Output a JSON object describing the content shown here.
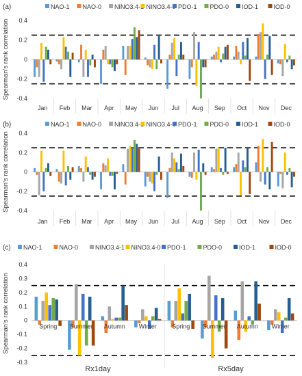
{
  "chart_data": [
    {
      "panel_label": "(a)",
      "type": "bar",
      "ylabel": "Spearman's rank correlation",
      "ylim": [
        -0.4,
        0.4
      ],
      "yticks": [
        -0.4,
        -0.2,
        0,
        0.2,
        0.4
      ],
      "threshold": 0.25,
      "legend_position": "top",
      "categories": [
        "Jan",
        "Feb",
        "Mar",
        "Apr",
        "May",
        "Jun",
        "Jul",
        "Aug",
        "Sep",
        "Oct",
        "Nov",
        "Dec"
      ],
      "series": [
        {
          "name": "NAO-1",
          "color": "#5b9bd5",
          "values": [
            -0.18,
            -0.02,
            -0.03,
            -0.25,
            0.14,
            0.02,
            -0.3,
            -0.2,
            0.03,
            0.03,
            0.03,
            -0.04
          ]
        },
        {
          "name": "NAO-0",
          "color": "#ed7d31",
          "values": [
            -0.08,
            -0.05,
            0.15,
            0.1,
            -0.16,
            -0.06,
            0.05,
            -0.08,
            0.05,
            0.14,
            0.26,
            -0.05
          ]
        },
        {
          "name": "NINO3.4-1",
          "color": "#a5a5a5",
          "values": [
            -0.18,
            -0.1,
            -0.18,
            0.14,
            0.14,
            -0.08,
            0.17,
            0.28,
            0.08,
            0.08,
            0.28,
            -0.17
          ]
        },
        {
          "name": "NINO3.4-0",
          "color": "#ffc000",
          "values": [
            0.17,
            0.23,
            0.1,
            -0.05,
            0.14,
            -0.1,
            0.22,
            -0.27,
            0.13,
            -0.05,
            0.37,
            0.16
          ]
        },
        {
          "name": "PDO-1",
          "color": "#4472c4",
          "values": [
            -0.23,
            0.13,
            -0.18,
            -0.05,
            0.21,
            0.15,
            -0.17,
            0.18,
            -0.03,
            0.18,
            -0.2,
            -0.03
          ]
        },
        {
          "name": "PDO-0",
          "color": "#70ad47",
          "values": [
            0.13,
            0.08,
            -0.06,
            -0.08,
            0.33,
            -0.1,
            0.05,
            -0.4,
            0.06,
            0.04,
            0.05,
            0.04
          ]
        },
        {
          "name": "IOD-1",
          "color": "#255e91",
          "values": [
            0.1,
            -0.18,
            0.05,
            -0.12,
            0.23,
            0.24,
            0.18,
            -0.08,
            0.13,
            0.22,
            0.24,
            -0.1
          ]
        },
        {
          "name": "IOD-0",
          "color": "#9e480e",
          "values": [
            -0.05,
            0.07,
            -0.08,
            -0.05,
            0.3,
            -0.04,
            0.05,
            -0.08,
            0.15,
            -0.22,
            -0.16,
            -0.06
          ]
        }
      ]
    },
    {
      "panel_label": "(b)",
      "type": "bar",
      "ylabel": "Spearman's rank correlation",
      "ylim": [
        -0.4,
        0.4
      ],
      "yticks": [
        -0.4,
        -0.2,
        0,
        0.2,
        0.4
      ],
      "threshold": 0.25,
      "legend_position": "top",
      "categories": [
        "Jan",
        "Feb",
        "Mar",
        "Apr",
        "May",
        "Jun",
        "Jul",
        "Aug",
        "Sep",
        "Oct",
        "Nov",
        "Dec"
      ],
      "series": [
        {
          "name": "NAO-1",
          "color": "#5b9bd5",
          "values": [
            0.04,
            0.03,
            0.06,
            -0.18,
            0.08,
            -0.15,
            -0.27,
            -0.05,
            0.05,
            0.05,
            0.1,
            -0.15
          ]
        },
        {
          "name": "NAO-0",
          "color": "#ed7d31",
          "values": [
            -0.03,
            -0.1,
            0.04,
            0.09,
            -0.13,
            -0.05,
            0.04,
            -0.06,
            0.03,
            0.08,
            0.27,
            -0.02
          ]
        },
        {
          "name": "NINO3.4-1",
          "color": "#a5a5a5",
          "values": [
            -0.24,
            -0.12,
            -0.1,
            0.07,
            0.24,
            -0.1,
            0.2,
            0.2,
            0.24,
            0.2,
            -0.1,
            -0.17
          ]
        },
        {
          "name": "NINO3.4-0",
          "color": "#ffc000",
          "values": [
            0.22,
            0.22,
            0.16,
            0.14,
            0.27,
            -0.12,
            0.14,
            -0.08,
            0.25,
            -0.24,
            0.34,
            0.2
          ]
        },
        {
          "name": "PDO-1",
          "color": "#4472c4",
          "values": [
            -0.2,
            -0.14,
            0.05,
            -0.04,
            0.25,
            -0.2,
            0.1,
            0.23,
            0.04,
            0.12,
            -0.13,
            -0.03
          ]
        },
        {
          "name": "PDO-0",
          "color": "#70ad47",
          "values": [
            0.04,
            0.06,
            -0.03,
            -0.04,
            0.33,
            -0.03,
            0.03,
            -0.4,
            -0.03,
            0.05,
            0.05,
            0.04
          ]
        },
        {
          "name": "IOD-1",
          "color": "#255e91",
          "values": [
            0.09,
            -0.08,
            -0.08,
            -0.18,
            0.29,
            0.16,
            0.19,
            0.09,
            0.25,
            0.25,
            -0.18,
            -0.16
          ]
        },
        {
          "name": "IOD-0",
          "color": "#9e480e",
          "values": [
            -0.04,
            0.05,
            -0.05,
            -0.02,
            0.25,
            -0.08,
            0.06,
            -0.03,
            -0.02,
            -0.23,
            0.31,
            -0.05
          ]
        }
      ]
    },
    {
      "panel_label": "(c)",
      "type": "bar",
      "ylabel": "Spearman's rank correlation",
      "ylim": [
        -0.3,
        0.4
      ],
      "yticks": [
        -0.3,
        -0.2,
        -0.1,
        0,
        0.1,
        0.2,
        0.3,
        0.4
      ],
      "threshold": 0.25,
      "legend_position": "top",
      "categories": [
        "Spring",
        "Summer",
        "Autumn",
        "Winter",
        "Spring",
        "Summer",
        "Autumn",
        "Winter"
      ],
      "groups": [
        "Rx1day",
        "Rx5day"
      ],
      "series": [
        {
          "name": "NAO-1",
          "color": "#5b9bd5",
          "values": [
            0.17,
            -0.21,
            0.03,
            -0.05,
            0.14,
            -0.13,
            0.07,
            -0.07
          ]
        },
        {
          "name": "NAO-0",
          "color": "#ed7d31",
          "values": [
            -0.03,
            -0.05,
            -0.09,
            -0.02,
            -0.05,
            -0.05,
            -0.14,
            -0.03
          ]
        },
        {
          "name": "NINO3.4-1",
          "color": "#a5a5a5",
          "values": [
            0.14,
            0.26,
            0.1,
            0.08,
            0.14,
            0.32,
            0.28,
            0.08
          ]
        },
        {
          "name": "NINO3.4-0",
          "color": "#ffc000",
          "values": [
            0.2,
            -0.25,
            0.01,
            0.03,
            0.23,
            -0.27,
            -0.08,
            0.06
          ]
        },
        {
          "name": "PDO-1",
          "color": "#4472c4",
          "values": [
            0.11,
            0.19,
            0.02,
            -0.06,
            0.05,
            0.18,
            0.03,
            -0.09
          ]
        },
        {
          "name": "PDO-0",
          "color": "#70ad47",
          "values": [
            0.16,
            -0.18,
            0.02,
            0.03,
            0.14,
            -0.08,
            -0.03,
            0.02
          ]
        },
        {
          "name": "IOD-1",
          "color": "#255e91",
          "values": [
            0.15,
            0.17,
            0.25,
            0.09,
            0.19,
            0.16,
            0.28,
            0.16
          ]
        },
        {
          "name": "IOD-0",
          "color": "#9e480e",
          "values": [
            -0.04,
            -0.18,
            0.11,
            0.01,
            -0.06,
            -0.2,
            0.12,
            0.05
          ]
        }
      ]
    }
  ]
}
